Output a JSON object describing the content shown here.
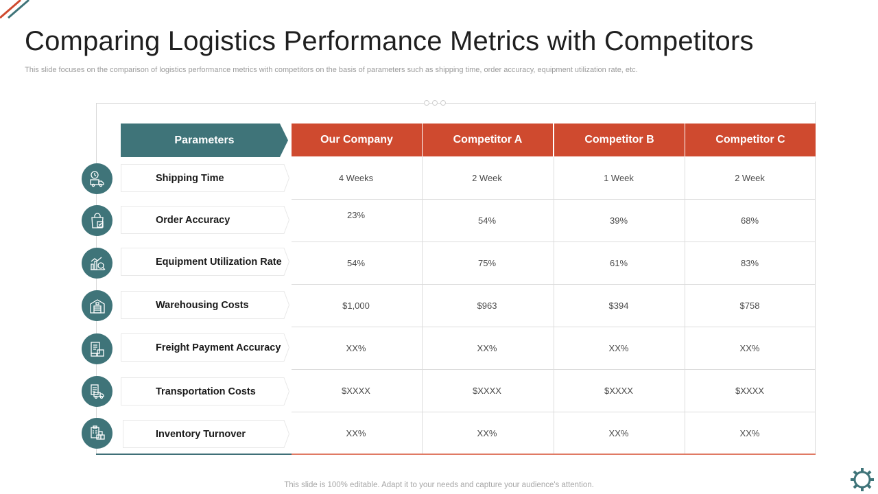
{
  "title": "Comparing Logistics Performance Metrics with Competitors",
  "subtitle": "This slide focuses on the comparison of logistics performance metrics with competitors on the basis of parameters such as shipping time, order accuracy, equipment utilization rate, etc.",
  "table": {
    "parameters_header": "Parameters",
    "columns": [
      "Our Company",
      "Competitor A",
      "Competitor B",
      "Competitor C"
    ],
    "rows": [
      {
        "label": "Shipping Time",
        "icon": "delivery-truck-clock-icon",
        "values": [
          "4 Weeks",
          "2 Week",
          "1 Week",
          "2 Week"
        ]
      },
      {
        "label": "Order Accuracy",
        "icon": "shopping-bag-check-icon",
        "values": [
          "23%",
          "54%",
          "39%",
          "68%"
        ]
      },
      {
        "label": "Equipment Utilization Rate",
        "icon": "chart-magnifier-icon",
        "values": [
          "54%",
          "75%",
          "61%",
          "83%"
        ]
      },
      {
        "label": "Warehousing Costs",
        "icon": "warehouse-icon",
        "values": [
          "$1,000",
          "$963",
          "$394",
          "$758"
        ]
      },
      {
        "label": "Freight Payment Accuracy",
        "icon": "freight-boxes-icon",
        "values": [
          "XX%",
          "XX%",
          "XX%",
          "XX%"
        ]
      },
      {
        "label": "Transportation Costs",
        "icon": "truck-document-icon",
        "values": [
          "$XXXX",
          "$XXXX",
          "$XXXX",
          "$XXXX"
        ]
      },
      {
        "label": "Inventory Turnover",
        "icon": "clipboard-boxes-icon",
        "values": [
          "XX%",
          "XX%",
          "XX%",
          "XX%"
        ]
      }
    ]
  },
  "footer": "This slide is 100% editable. Adapt it to your needs and capture your audience's attention.",
  "colors": {
    "teal": "#3f7479",
    "orange": "#cf4a2f",
    "grid": "#dcdcdc"
  }
}
